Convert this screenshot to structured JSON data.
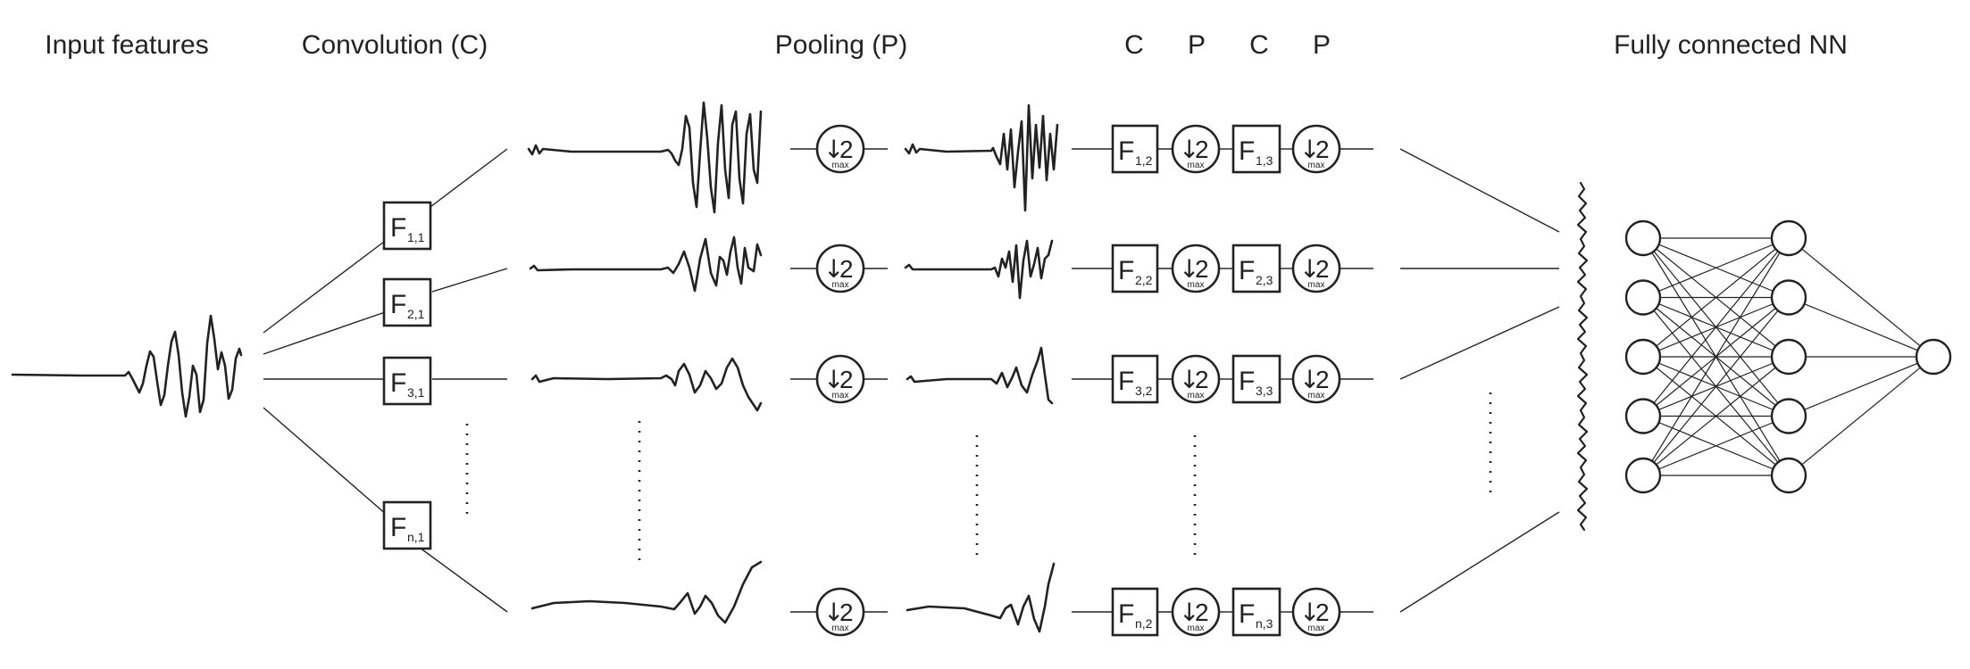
{
  "headings": {
    "input": "Input features",
    "convolution": "Convolution (C)",
    "pooling": "Pooling (P)",
    "c1": "C",
    "p1": "P",
    "c2": "C",
    "p2": "P",
    "fully_connected": "Fully connected NN"
  },
  "filter_letter": "F",
  "first_conv_filters": [
    "1,1",
    "2,1",
    "3,1",
    "n,1"
  ],
  "second_conv_filters": [
    "1,2",
    "2,2",
    "3,2",
    "n,2"
  ],
  "third_conv_filters": [
    "1,3",
    "2,3",
    "3,3",
    "n,3"
  ],
  "pool_symbol": {
    "arrow": "↓",
    "factor": "2",
    "op": "max"
  },
  "neural_network": {
    "layer_sizes": [
      5,
      5,
      1
    ]
  }
}
